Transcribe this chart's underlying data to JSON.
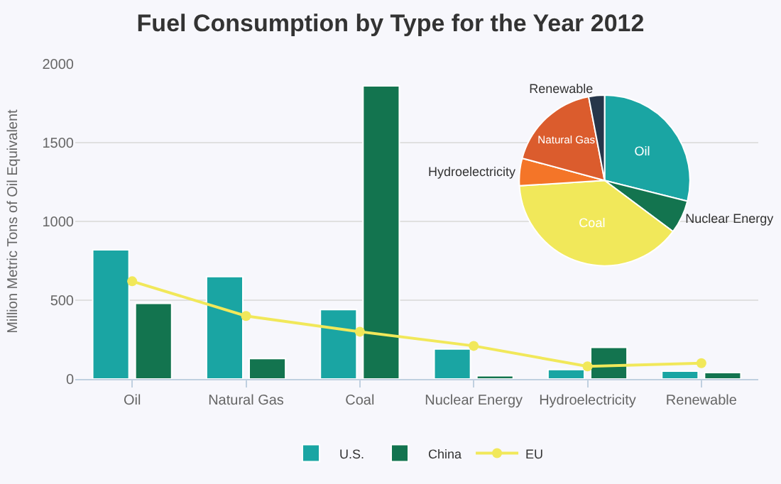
{
  "chart_data": [
    {
      "type": "bar",
      "title": "Fuel Consumption by Type for the Year 2012",
      "ylabel": "Million Metric Tons of Oil Equivalent",
      "categories": [
        "Oil",
        "Natural Gas",
        "Coal",
        "Nuclear Energy",
        "Hydroelectricity",
        "Renewable"
      ],
      "series": [
        {
          "name": "U.S.",
          "color": "#1aa5a3",
          "values": [
            820,
            650,
            440,
            190,
            60,
            50
          ]
        },
        {
          "name": "China",
          "color": "#13744f",
          "values": [
            480,
            130,
            1860,
            20,
            200,
            40
          ]
        },
        {
          "name": "EU",
          "type": "line",
          "color": "#f1e85a",
          "marker": "circle",
          "values": [
            620,
            400,
            300,
            210,
            80,
            100
          ]
        }
      ],
      "ylim": [
        0,
        2000
      ],
      "yticks": [
        0,
        500,
        1000,
        1500,
        2000
      ],
      "grid": "y",
      "legend": "bottom"
    },
    {
      "type": "pie",
      "categories": [
        "Oil",
        "Nuclear Energy",
        "Coal",
        "Hydroelectricity",
        "Natural Gas",
        "Renewable"
      ],
      "values": [
        28.9,
        6.3,
        38.8,
        5.2,
        17.8,
        3.0
      ],
      "colors": [
        "#1aa5a3",
        "#13744f",
        "#f1e85a",
        "#f47528",
        "#db5c2d",
        "#26364a"
      ]
    }
  ]
}
